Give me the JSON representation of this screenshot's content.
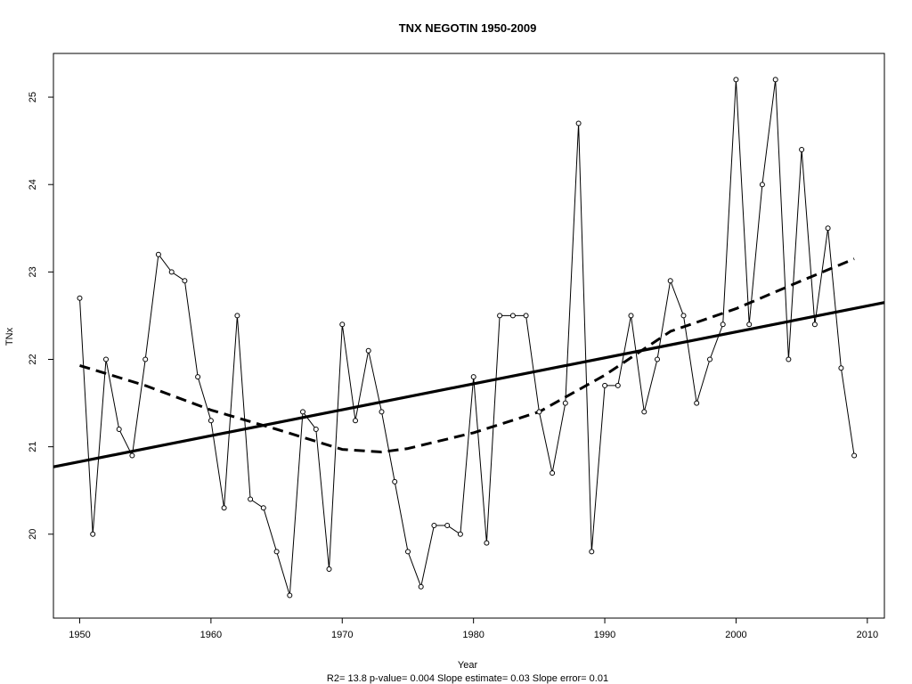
{
  "chart_data": {
    "type": "line",
    "title": "TNX   NEGOTIN 1950-2009",
    "xlabel": "Year",
    "ylabel": "TNx",
    "caption": "R2= 13.8  p-value= 0.004  Slope estimate= 0.03  Slope error= 0.01",
    "xlim": [
      1948,
      2011.3
    ],
    "ylim": [
      19.04,
      25.5
    ],
    "x_ticks": [
      1950,
      1960,
      1970,
      1980,
      1990,
      2000,
      2010
    ],
    "y_ticks": [
      20,
      21,
      22,
      23,
      24,
      25
    ],
    "grid": false,
    "series": [
      {
        "x": [
          1950,
          1951,
          1952,
          1953,
          1954,
          1955,
          1956,
          1957,
          1958,
          1959,
          1960,
          1961,
          1962,
          1963,
          1964,
          1965,
          1966,
          1967,
          1968,
          1969,
          1970,
          1971,
          1972,
          1973,
          1974,
          1975,
          1976,
          1977,
          1978,
          1979,
          1980,
          1981,
          1982,
          1983,
          1984,
          1985,
          1986,
          1987,
          1988,
          1989,
          1990,
          1991,
          1992,
          1993,
          1994,
          1995,
          1996,
          1997,
          1998,
          1999,
          2000,
          2001,
          2002,
          2003,
          2004,
          2005,
          2006,
          2007,
          2008,
          2009
        ],
        "values": [
          22.7,
          20.0,
          22.0,
          21.2,
          20.9,
          22.0,
          23.2,
          23.0,
          22.9,
          21.8,
          21.3,
          20.3,
          22.5,
          20.4,
          20.3,
          19.8,
          19.3,
          21.4,
          21.2,
          19.6,
          22.4,
          21.3,
          22.1,
          21.4,
          20.6,
          19.8,
          19.4,
          20.1,
          20.1,
          20.0,
          21.8,
          19.9,
          22.5,
          22.5,
          22.5,
          21.4,
          20.7,
          21.5,
          24.7,
          19.8,
          21.7,
          21.7,
          22.5,
          21.4,
          22.0,
          22.9,
          22.5,
          21.5,
          22.0,
          22.4,
          25.2,
          22.4,
          24.0,
          25.2,
          22.0,
          24.4,
          22.4,
          23.5,
          21.9,
          20.9
        ]
      }
    ],
    "trend_line": {
      "x": [
        1948,
        2011.3
      ],
      "values": [
        20.77,
        22.65
      ]
    },
    "smooth_curve": {
      "x": [
        1950,
        1955,
        1960,
        1965,
        1970,
        1973,
        1975,
        1980,
        1985,
        1990,
        1995,
        2000,
        2005,
        2009
      ],
      "values": [
        21.93,
        21.7,
        21.42,
        21.2,
        20.97,
        20.94,
        20.98,
        21.16,
        21.4,
        21.82,
        22.32,
        22.58,
        22.9,
        23.15
      ]
    }
  }
}
